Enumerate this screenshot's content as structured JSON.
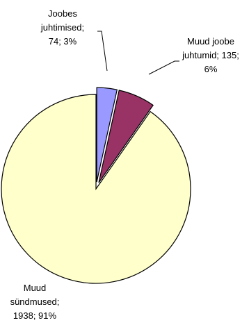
{
  "chart_data": {
    "type": "pie",
    "exploded": true,
    "slices": [
      {
        "label_lines": [
          "Joobes",
          "juhtimised;",
          "74; 3%"
        ],
        "value": 74,
        "percent": 3,
        "color": "#9999ff"
      },
      {
        "label_lines": [
          "Muud joobe",
          "juhtumid; 135;",
          "6%"
        ],
        "value": 135,
        "percent": 6,
        "color": "#993366"
      },
      {
        "label_lines": [
          "Muud",
          "sündmused;",
          "1938; 91%"
        ],
        "value": 1938,
        "percent": 91,
        "color": "#ffffcc"
      }
    ]
  }
}
